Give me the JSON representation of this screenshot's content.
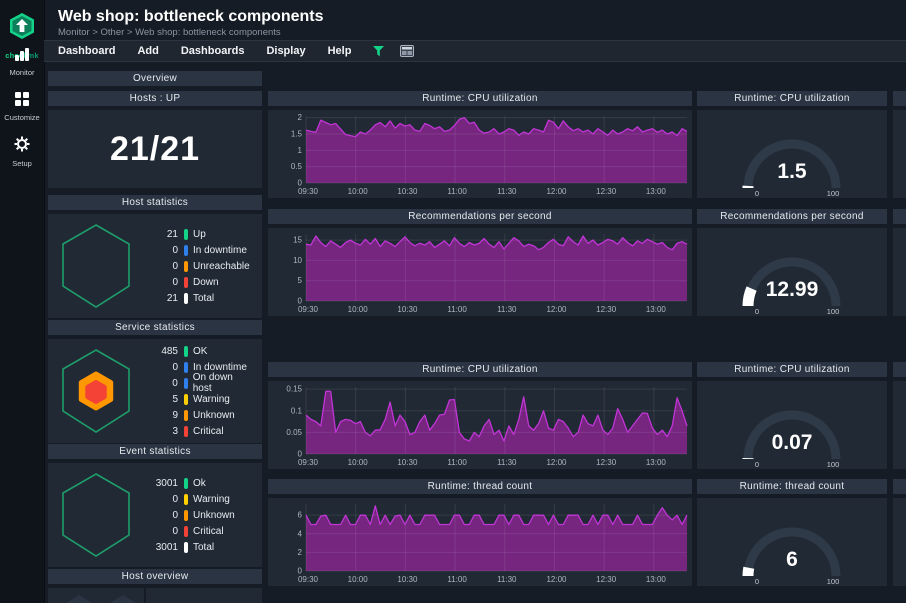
{
  "sidebar": {
    "logo_check": "check",
    "logo_mk": "mk",
    "items": [
      {
        "label": "Monitor",
        "icon": "bar-chart-icon"
      },
      {
        "label": "Customize",
        "icon": "grid-squares-icon"
      },
      {
        "label": "Setup",
        "icon": "gear-icon"
      }
    ]
  },
  "header": {
    "title": "Web shop: bottleneck components",
    "breadcrumb": "Monitor > Other > Web shop: bottleneck components"
  },
  "menubar": {
    "items": [
      "Dashboard",
      "Add",
      "Dashboards",
      "Display",
      "Help"
    ],
    "icons": [
      "filter-icon",
      "layout-icon"
    ]
  },
  "overview": {
    "title": "Overview"
  },
  "hosts_up": {
    "title": "Hosts : UP",
    "value": "21/21"
  },
  "host_stats": {
    "title": "Host statistics",
    "rows": [
      {
        "count": "21",
        "color": "#13d389",
        "label": "Up"
      },
      {
        "count": "0",
        "color": "#2f80ed",
        "label": "In downtime"
      },
      {
        "count": "0",
        "color": "#ff9800",
        "label": "Unreachable"
      },
      {
        "count": "0",
        "color": "#f44336",
        "label": "Down"
      },
      {
        "count": "21",
        "color": "#ffffff",
        "label": "Total"
      }
    ]
  },
  "service_stats": {
    "title": "Service statistics",
    "rows": [
      {
        "count": "485",
        "color": "#13d389",
        "label": "OK"
      },
      {
        "count": "0",
        "color": "#2f80ed",
        "label": "In downtime"
      },
      {
        "count": "0",
        "color": "#2f80ed",
        "label": "On down host"
      },
      {
        "count": "5",
        "color": "#ffd000",
        "label": "Warning"
      },
      {
        "count": "9",
        "color": "#ff9800",
        "label": "Unknown"
      },
      {
        "count": "3",
        "color": "#f44336",
        "label": "Critical"
      }
    ]
  },
  "event_stats": {
    "title": "Event statistics",
    "rows": [
      {
        "count": "3001",
        "color": "#13d389",
        "label": "Ok"
      },
      {
        "count": "0",
        "color": "#ffd000",
        "label": "Warning"
      },
      {
        "count": "0",
        "color": "#ff9800",
        "label": "Unknown"
      },
      {
        "count": "0",
        "color": "#f44336",
        "label": "Critical"
      },
      {
        "count": "3001",
        "color": "#ffffff",
        "label": "Total"
      }
    ]
  },
  "host_overview": {
    "title": "Host overview"
  },
  "colors": {
    "accent_green": "#13d389",
    "area_fill": "#76267f",
    "area_line": "#c135d6",
    "gauge_ring": "#2f3a48",
    "gauge_fill": "#ffffff"
  },
  "chart_data": [
    {
      "type": "area",
      "title": "Runtime: CPU utilization",
      "ylim": [
        0,
        2.05
      ],
      "y_ticks": [
        0,
        0.5,
        1,
        1.5,
        2
      ],
      "x_tick_labels": [
        "09:30",
        "10:00",
        "10:30",
        "11:00",
        "11:30",
        "12:00",
        "12:30",
        "13:00"
      ],
      "x_total_minutes": 230,
      "x_label_step_minutes": 30,
      "values": [
        1.62,
        1.58,
        1.55,
        1.92,
        1.85,
        1.78,
        1.82,
        1.65,
        1.48,
        1.45,
        1.42,
        1.56,
        1.5,
        1.62,
        1.78,
        1.85,
        1.72,
        1.9,
        1.68,
        1.82,
        1.74,
        1.78,
        1.62,
        1.58,
        1.82,
        1.76,
        1.66,
        1.72,
        1.58,
        1.62,
        1.76,
        1.95,
        2.0,
        1.82,
        1.86,
        1.62,
        1.52,
        1.56,
        1.66,
        1.5,
        1.56,
        1.66,
        1.62,
        1.46,
        1.56,
        1.5,
        1.66,
        1.62,
        1.56,
        1.92,
        1.86,
        1.66,
        1.9,
        1.72,
        1.6,
        1.66,
        1.56,
        1.62,
        1.5,
        1.66,
        1.56,
        1.46,
        1.62,
        1.5,
        1.56,
        1.66,
        1.6,
        1.72,
        1.56,
        1.62,
        1.66,
        1.55,
        1.62,
        1.5,
        1.56,
        1.45,
        1.66,
        1.58
      ]
    },
    {
      "type": "gauge",
      "title": "Runtime: CPU utilization",
      "value": 1.5,
      "display": "1.5",
      "min_label": "0",
      "max_label": "100",
      "min": 0,
      "max": 100
    },
    {
      "type": "area",
      "title": "Recommendations per second",
      "ylim": [
        0,
        16.5
      ],
      "y_ticks": [
        0,
        5,
        10,
        15
      ],
      "x_tick_labels": [
        "09:30",
        "10:00",
        "10:30",
        "11:00",
        "11:30",
        "12:00",
        "12:30",
        "13:00"
      ],
      "x_total_minutes": 230,
      "x_label_step_minutes": 30,
      "values": [
        14.0,
        13.8,
        16.0,
        14.4,
        13.4,
        14.8,
        14.0,
        13.2,
        14.4,
        15.0,
        14.2,
        13.8,
        15.2,
        14.0,
        15.4,
        13.4,
        14.8,
        14.2,
        13.4,
        14.6,
        15.8,
        14.4,
        13.6,
        14.2,
        13.8,
        14.6,
        13.2,
        14.0,
        14.8,
        13.6,
        15.6,
        14.2,
        13.4,
        14.4,
        13.8,
        14.2,
        15.4,
        14.0,
        13.2,
        14.6,
        12.8,
        14.2,
        15.6,
        14.8,
        13.4,
        14.0,
        13.6,
        12.6,
        13.2,
        14.4,
        15.2,
        14.0,
        13.6,
        15.8,
        14.6,
        13.8,
        16.0,
        14.2,
        15.0,
        13.8,
        14.4,
        15.2,
        14.8,
        14.0,
        15.6,
        14.4,
        13.6,
        14.8,
        14.2,
        15.2,
        14.6,
        14.0,
        14.4,
        13.2,
        12.6,
        14.2,
        14.6,
        14.0
      ]
    },
    {
      "type": "gauge",
      "title": "Recommendations per second",
      "value": 12.99,
      "display": "12.99",
      "min_label": "0",
      "max_label": "100",
      "min": 0,
      "max": 100
    },
    {
      "type": "area",
      "title": "Runtime: CPU utilization",
      "ylim": [
        0,
        0.155
      ],
      "y_ticks": [
        0,
        0.05,
        0.1,
        0.15
      ],
      "x_tick_labels": [
        "09:30",
        "10:00",
        "10:30",
        "11:00",
        "11:30",
        "12:00",
        "12:30",
        "13:00"
      ],
      "x_total_minutes": 230,
      "x_label_step_minutes": 30,
      "values": [
        0.09,
        0.08,
        0.075,
        0.065,
        0.145,
        0.145,
        0.05,
        0.075,
        0.08,
        0.078,
        0.07,
        0.075,
        0.05,
        0.042,
        0.055,
        0.056,
        0.08,
        0.12,
        0.065,
        0.09,
        0.075,
        0.045,
        0.05,
        0.075,
        0.09,
        0.055,
        0.07,
        0.09,
        0.092,
        0.125,
        0.126,
        0.05,
        0.035,
        0.03,
        0.05,
        0.04,
        0.065,
        0.08,
        0.045,
        0.055,
        0.03,
        0.065,
        0.045,
        0.08,
        0.132,
        0.065,
        0.055,
        0.07,
        0.1,
        0.06,
        0.055,
        0.08,
        0.075,
        0.06,
        0.04,
        0.05,
        0.09,
        0.07,
        0.065,
        0.09,
        0.055,
        0.045,
        0.06,
        0.105,
        0.08,
        0.05,
        0.065,
        0.08,
        0.095,
        0.094,
        0.06,
        0.045,
        0.055,
        0.04,
        0.065,
        0.13,
        0.1,
        0.065
      ]
    },
    {
      "type": "gauge",
      "title": "Runtime: CPU utilization",
      "value": 0.07,
      "display": "0.07",
      "min_label": "0",
      "max_label": "100",
      "min": 0,
      "max": 100
    },
    {
      "type": "area",
      "title": "Runtime: thread count",
      "ylim": [
        0,
        7.2
      ],
      "y_ticks": [
        0,
        2,
        4,
        6
      ],
      "x_tick_labels": [
        "09:30",
        "10:00",
        "10:30",
        "11:00",
        "11:30",
        "12:00",
        "12:30",
        "13:00"
      ],
      "x_total_minutes": 230,
      "x_label_step_minutes": 30,
      "values": [
        6,
        5,
        5,
        5.9,
        6,
        5,
        5,
        5,
        6,
        5,
        5,
        6,
        6,
        5,
        7,
        5,
        6,
        5,
        5.9,
        6,
        5,
        6,
        5,
        5,
        6,
        6,
        6,
        5,
        5,
        5,
        6,
        6,
        5,
        5,
        6,
        6,
        5,
        5,
        5,
        6,
        6,
        5,
        6,
        6,
        5,
        5,
        6,
        6,
        6,
        5,
        6,
        5,
        5,
        6,
        6,
        6,
        5,
        5,
        6,
        5,
        6,
        6,
        5,
        6,
        5,
        5,
        5,
        6,
        5,
        5,
        5,
        6,
        6.8,
        6,
        5.5,
        6,
        5,
        6
      ]
    },
    {
      "type": "gauge",
      "title": "Runtime: thread count",
      "value": 6,
      "display": "6",
      "min_label": "0",
      "max_label": "100",
      "min": 0,
      "max": 100
    }
  ]
}
